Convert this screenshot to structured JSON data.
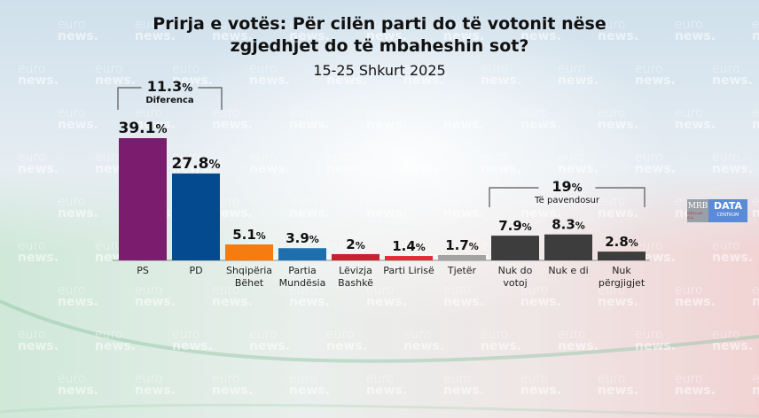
{
  "title_line1": "Prirja e votës: Për cilën parti do të votonit nëse",
  "title_line2": "zgjedhjet do të mbaheshin sot?",
  "subtitle": "15-25 Shkurt 2025",
  "watermark": {
    "line1": "euro",
    "line2": "news."
  },
  "logo": {
    "left": "MRB",
    "left_small": "HELLAS S.A.",
    "right": "DATA",
    "right_small": "CENTRUM"
  },
  "colors": {
    "PS": "#7b1c6e",
    "PD": "#034b8e",
    "Shqipëria Bëhet": "#f57c10",
    "Partia Mundësia": "#1d6fad",
    "Lëvizja Bashkë": "#c42330",
    "Parti Lirisë": "#e32a35",
    "Tjetër": "#a3a3a3",
    "undecided": "#3d3d3d"
  },
  "chart_data": {
    "type": "bar",
    "title": "Prirja e votës: Për cilën parti do të votonit nëse zgjedhjet do të mbaheshin sot?",
    "subtitle": "15-25 Shkurt 2025",
    "xlabel": "",
    "ylabel": "",
    "unit": "%",
    "ylim": [
      0,
      40
    ],
    "grid": false,
    "categories": [
      "PS",
      "PD",
      "Shqipëria Bëhet",
      "Partia Mundësia",
      "Lëvizja Bashkë",
      "Parti Lirisë",
      "Tjetër",
      "Nuk do votoj",
      "Nuk e di",
      "Nuk përgjigjet"
    ],
    "category_lines": [
      [
        "PS"
      ],
      [
        "PD"
      ],
      [
        "Shqipëria",
        "Bëhet"
      ],
      [
        "Partia",
        "Mundësia"
      ],
      [
        "Lëvizja",
        "Bashkë"
      ],
      [
        "Parti Lirisë"
      ],
      [
        "Tjetër"
      ],
      [
        "Nuk do",
        "votoj"
      ],
      [
        "Nuk e di"
      ],
      [
        "Nuk",
        "përgjigjet"
      ]
    ],
    "values": [
      39.1,
      27.8,
      5.1,
      3.9,
      2,
      1.4,
      1.7,
      7.9,
      8.3,
      2.8
    ],
    "value_labels": [
      "39.1",
      "27.8",
      "5.1",
      "3.9",
      "2",
      "1.4",
      "1.7",
      "7.9",
      "8.3",
      "2.8"
    ],
    "color_keys": [
      "PS",
      "PD",
      "Shqipëria Bëhet",
      "Partia Mundësia",
      "Lëvizja Bashkë",
      "Parti Lirisë",
      "Tjetër",
      "undecided",
      "undecided",
      "undecided"
    ],
    "annotations": [
      {
        "value": "11.3",
        "label": "Diferenca",
        "spans": [
          "PS",
          "PD"
        ]
      },
      {
        "value": "19",
        "label": "Të pavendosur",
        "spans": [
          "Nuk do votoj",
          "Nuk e di",
          "Nuk përgjigjet"
        ]
      }
    ]
  }
}
